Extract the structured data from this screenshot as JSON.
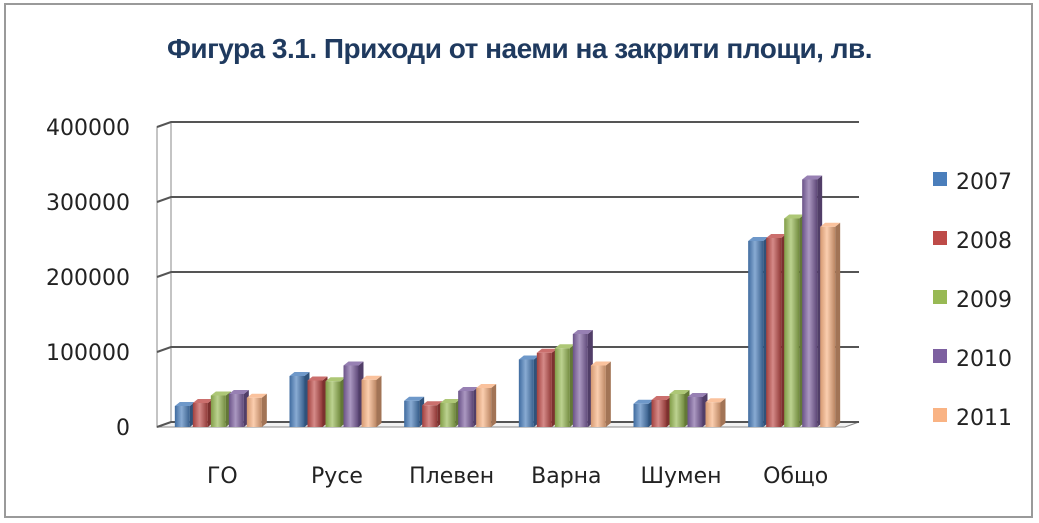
{
  "chart_data": {
    "type": "bar",
    "title": "Фигура 3.1. Приходи от наеми на закрити площи, лв.",
    "xlabel": "",
    "ylabel": "",
    "ylim": [
      0,
      400000
    ],
    "yticks": [
      "400000",
      "300000",
      "200000",
      "100000",
      "0"
    ],
    "grid": true,
    "legend_position": "right",
    "categories": [
      "ГО",
      "Русе",
      "Плевен",
      "Варна",
      "Шумен",
      "Общо"
    ],
    "series": [
      {
        "name": "2007",
        "color": "#4a7ebb",
        "values": [
          28000,
          68000,
          35000,
          90000,
          31000,
          248000
        ]
      },
      {
        "name": "2008",
        "color": "#be4b48",
        "values": [
          32000,
          62000,
          29000,
          99000,
          36000,
          252000
        ]
      },
      {
        "name": "2009",
        "color": "#98b954",
        "values": [
          42000,
          61000,
          32000,
          105000,
          44000,
          278000
        ]
      },
      {
        "name": "2010",
        "color": "#7d60a0",
        "values": [
          44000,
          82000,
          48000,
          124000,
          40000,
          330000
        ]
      },
      {
        "name": "2011",
        "color": "#f9b384",
        "values": [
          39000,
          63000,
          52000,
          82000,
          33000,
          267000
        ]
      }
    ]
  }
}
